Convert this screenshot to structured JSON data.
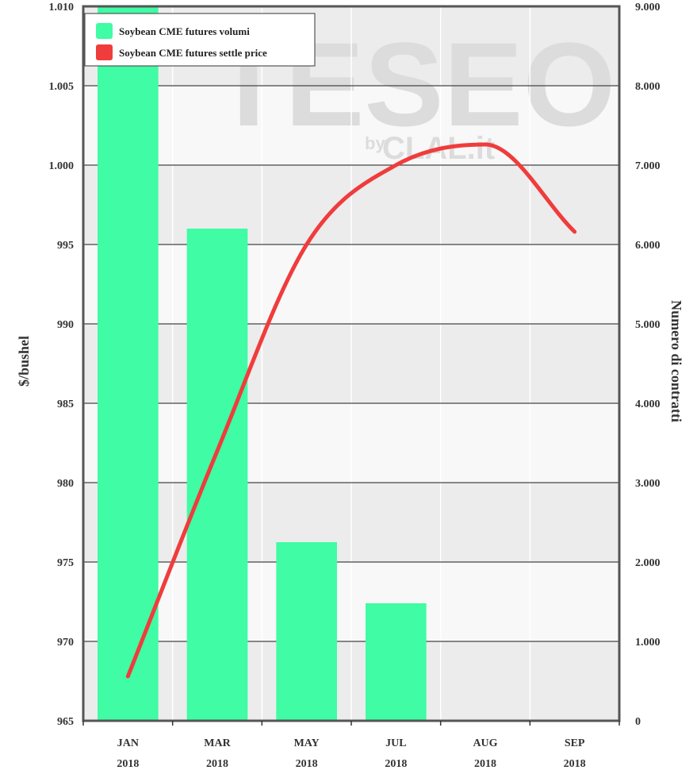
{
  "watermark": {
    "main": "TESEO",
    "by": "by",
    "brand": "CLAL.it"
  },
  "colors": {
    "bar": "#3ffca5",
    "line": "#f03c3c",
    "band_light": "#f8f8f8",
    "band_dark": "#ececec",
    "grid": "#444444",
    "frame": "#555555"
  },
  "chart_data": {
    "type": "bar+line",
    "categories": [
      "JAN\n2018",
      "MAR\n2018",
      "MAY\n2018",
      "JUL\n2018",
      "AUG\n2018",
      "SEP\n2018"
    ],
    "category_lines": [
      [
        "JAN",
        "2018"
      ],
      [
        "MAR",
        "2018"
      ],
      [
        "MAY",
        "2018"
      ],
      [
        "JUL",
        "2018"
      ],
      [
        "AUG",
        "2018"
      ],
      [
        "SEP",
        "2018"
      ]
    ],
    "y_left": {
      "label": "$/bushel",
      "range": [
        965,
        1010
      ],
      "ticks": [
        965,
        970,
        975,
        980,
        985,
        990,
        995,
        1000,
        1005,
        1010
      ],
      "tick_labels": [
        "965",
        "970",
        "975",
        "980",
        "985",
        "990",
        "995",
        "1.000",
        "1.005",
        "1.010"
      ]
    },
    "y_right": {
      "label": "Numero di contratti",
      "range": [
        0,
        9000
      ],
      "ticks": [
        0,
        1000,
        2000,
        3000,
        4000,
        5000,
        6000,
        7000,
        8000,
        9000
      ],
      "tick_labels": [
        "0",
        "1.000",
        "2.000",
        "3.000",
        "4.000",
        "5.000",
        "6.000",
        "7.000",
        "8.000",
        "9.000"
      ]
    },
    "series": [
      {
        "name": "Soybean CME futures volumi",
        "type": "bar",
        "axis": "right",
        "values": [
          9000,
          6200,
          2250,
          1480,
          0,
          0
        ]
      },
      {
        "name": "Soybean CME futures settle price",
        "type": "line",
        "axis": "left",
        "values": [
          967.8,
          982.0,
          995.0,
          1000.0,
          1001.3,
          995.8
        ]
      }
    ],
    "legend_position": "top-left",
    "grid": true
  }
}
